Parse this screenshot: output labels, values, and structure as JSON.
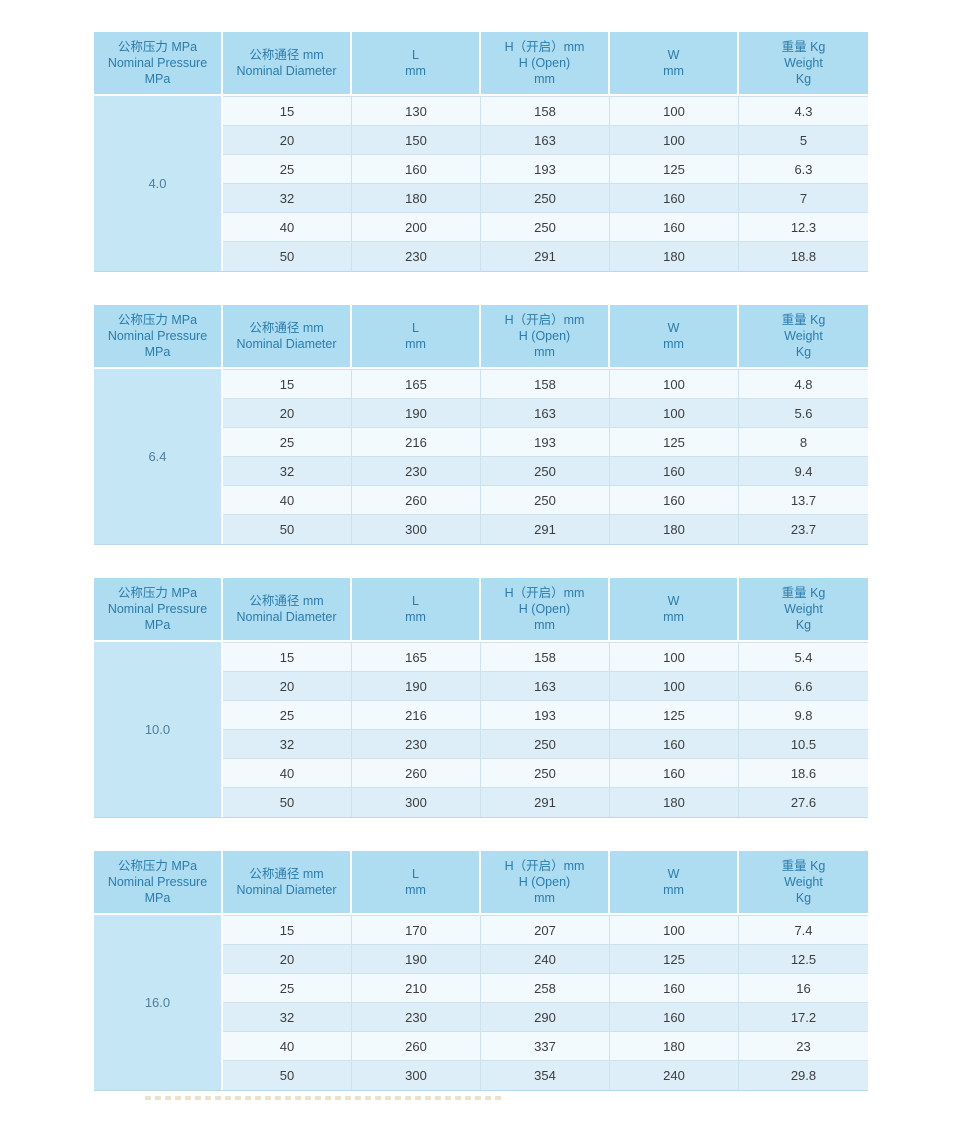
{
  "colors": {
    "header_bg": "#aedcf1",
    "header_text": "#2b7cac",
    "pressure_bg": "#c4e6f5",
    "pressure_text": "#4e7f9d",
    "row_odd": "#f3fafd",
    "row_even": "#ddeef8",
    "grid_line": "#cee2ee",
    "data_text": "#3d3d3d",
    "cutoff_fragment": "#e9dcc0"
  },
  "columns": [
    {
      "id": "pressure",
      "lines": [
        "公称压力 MPa",
        "Nominal Pressure",
        "MPa"
      ]
    },
    {
      "id": "diameter",
      "lines": [
        "公称通径 mm",
        "Nominal Diameter"
      ]
    },
    {
      "id": "length",
      "lines": [
        "L",
        "mm"
      ]
    },
    {
      "id": "height-open",
      "lines": [
        "H（开启）mm",
        "H (Open)",
        "mm"
      ]
    },
    {
      "id": "width",
      "lines": [
        "W",
        "mm"
      ]
    },
    {
      "id": "weight",
      "lines": [
        "重量 Kg",
        "Weight",
        "Kg"
      ]
    }
  ],
  "tables": [
    {
      "pressure": "4.0",
      "rows": [
        [
          "15",
          "130",
          "158",
          "100",
          "4.3"
        ],
        [
          "20",
          "150",
          "163",
          "100",
          "5"
        ],
        [
          "25",
          "160",
          "193",
          "125",
          "6.3"
        ],
        [
          "32",
          "180",
          "250",
          "160",
          "7"
        ],
        [
          "40",
          "200",
          "250",
          "160",
          "12.3"
        ],
        [
          "50",
          "230",
          "291",
          "180",
          "18.8"
        ]
      ]
    },
    {
      "pressure": "6.4",
      "rows": [
        [
          "15",
          "165",
          "158",
          "100",
          "4.8"
        ],
        [
          "20",
          "190",
          "163",
          "100",
          "5.6"
        ],
        [
          "25",
          "216",
          "193",
          "125",
          "8"
        ],
        [
          "32",
          "230",
          "250",
          "160",
          "9.4"
        ],
        [
          "40",
          "260",
          "250",
          "160",
          "13.7"
        ],
        [
          "50",
          "300",
          "291",
          "180",
          "23.7"
        ]
      ]
    },
    {
      "pressure": "10.0",
      "rows": [
        [
          "15",
          "165",
          "158",
          "100",
          "5.4"
        ],
        [
          "20",
          "190",
          "163",
          "100",
          "6.6"
        ],
        [
          "25",
          "216",
          "193",
          "125",
          "9.8"
        ],
        [
          "32",
          "230",
          "250",
          "160",
          "10.5"
        ],
        [
          "40",
          "260",
          "250",
          "160",
          "18.6"
        ],
        [
          "50",
          "300",
          "291",
          "180",
          "27.6"
        ]
      ]
    },
    {
      "pressure": "16.0",
      "rows": [
        [
          "15",
          "170",
          "207",
          "100",
          "7.4"
        ],
        [
          "20",
          "190",
          "240",
          "125",
          "12.5"
        ],
        [
          "25",
          "210",
          "258",
          "160",
          "16"
        ],
        [
          "32",
          "230",
          "290",
          "160",
          "17.2"
        ],
        [
          "40",
          "260",
          "337",
          "180",
          "23"
        ],
        [
          "50",
          "300",
          "354",
          "240",
          "29.8"
        ]
      ]
    }
  ]
}
